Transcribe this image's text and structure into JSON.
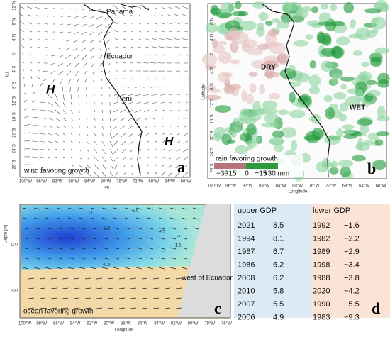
{
  "panel_a": {
    "letter": "a",
    "caption": "wind favoring growth",
    "xlabel": "lon",
    "ylabel": "lat",
    "lat_ticks": [
      "12°N",
      "8°N",
      "4°N",
      "0",
      "4°S",
      "8°S",
      "12°S",
      "16°S",
      "20°S",
      "24°S",
      "28°S"
    ],
    "lon_ticks": [
      "100°W",
      "96°W",
      "92°W",
      "88°W",
      "84°W",
      "80°W",
      "76°W",
      "72°W",
      "68°W",
      "64°W",
      "60°W"
    ],
    "places": [
      "Panama",
      "Ecuador",
      "Peru"
    ],
    "highs": [
      "H",
      "H"
    ]
  },
  "panel_b": {
    "letter": "b",
    "caption": "rain favoring growth",
    "xlabel": "Longitude",
    "ylabel": "Latitude",
    "lat_ticks": [
      "8°N",
      "4°N",
      "0",
      "4°S",
      "8°S",
      "12°S",
      "16°S",
      "20°S",
      "24°S",
      "28°S"
    ],
    "lon_ticks": [
      "100°W",
      "96°W",
      "92°W",
      "88°W",
      "84°W",
      "80°W",
      "76°W",
      "72°W",
      "68°W",
      "64°W",
      "60°W"
    ],
    "regions": [
      "DRY",
      "WET"
    ],
    "legend": [
      "−30",
      "−15",
      "0",
      "+15",
      "+30 mm"
    ]
  },
  "panel_c": {
    "letter": "c",
    "caption": "ocean favoring growth",
    "xlabel": "Longitude",
    "ylabel": "Depth [m]",
    "depth_ticks": [
      "100",
      "200"
    ],
    "lon_ticks": [
      "100°W",
      "98°W",
      "96°W",
      "94°W",
      "92°W",
      "90°W",
      "88°W",
      "86°W",
      "84°W",
      "82°W",
      "80°W",
      "78°W",
      "76°W"
    ],
    "contours": [
      "-1",
      "-1.5",
      "-2.5",
      "-2.5",
      "-2",
      "-1.5",
      "-1",
      "-0.5"
    ],
    "note": "west of Ecuador"
  },
  "panel_d": {
    "letter": "d",
    "headers": [
      "upper GDP",
      "lower GDP"
    ],
    "upper": [
      [
        "2021",
        "8.5"
      ],
      [
        "1994",
        "8.1"
      ],
      [
        "1987",
        "6.7"
      ],
      [
        "1986",
        "6.2"
      ],
      [
        "2008",
        "6.2"
      ],
      [
        "2010",
        "5.8"
      ],
      [
        "2007",
        "5.5"
      ],
      [
        "2006",
        "4.9"
      ]
    ],
    "lower": [
      [
        "1992",
        "−1.6"
      ],
      [
        "1982",
        "−2.2"
      ],
      [
        "1989",
        "−2.9"
      ],
      [
        "1998",
        "−3.4"
      ],
      [
        "1988",
        "−3.8"
      ],
      [
        "2020",
        "−4.2"
      ],
      [
        "1990",
        "−5.5"
      ],
      [
        "1983",
        "−9.3"
      ]
    ]
  }
}
